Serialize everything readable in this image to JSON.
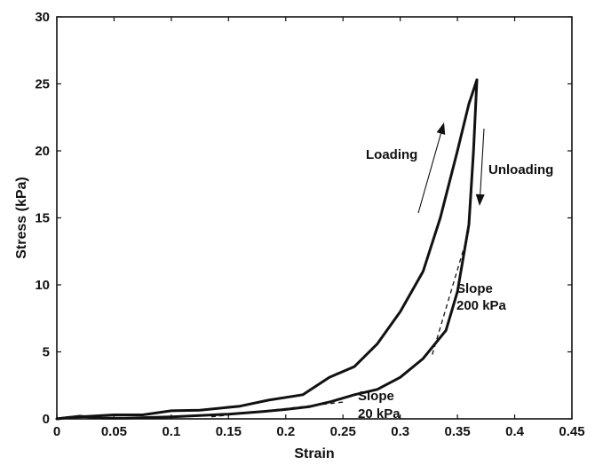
{
  "chart_data": {
    "type": "line",
    "title": "",
    "xlabel": "Strain",
    "ylabel": "Stress (kPa)",
    "xlim": [
      0,
      0.45
    ],
    "ylim": [
      0,
      30
    ],
    "grid": false,
    "x_ticks": [
      "0",
      "0.05",
      "0.1",
      "0.15",
      "0.2",
      "0.25",
      "0.3",
      "0.35",
      "0.4",
      "0.45"
    ],
    "y_ticks": [
      "0",
      "5",
      "10",
      "15",
      "20",
      "25",
      "30"
    ],
    "series": [
      {
        "id": "loading",
        "points": [
          [
            0,
            0
          ],
          [
            0.01,
            0.1
          ],
          [
            0.03,
            0.2
          ],
          [
            0.05,
            0.3
          ],
          [
            0.075,
            0.3
          ],
          [
            0.1,
            0.6
          ],
          [
            0.125,
            0.65
          ],
          [
            0.16,
            0.95
          ],
          [
            0.185,
            1.4
          ],
          [
            0.215,
            1.8
          ],
          [
            0.238,
            3.1
          ],
          [
            0.26,
            3.9
          ],
          [
            0.28,
            5.6
          ],
          [
            0.3,
            8.0
          ],
          [
            0.32,
            11.0
          ],
          [
            0.335,
            15.0
          ],
          [
            0.35,
            20.0
          ],
          [
            0.36,
            23.5
          ],
          [
            0.367,
            25.3
          ]
        ]
      },
      {
        "id": "unloading",
        "points": [
          [
            0.367,
            25.3
          ],
          [
            0.364,
            20.0
          ],
          [
            0.36,
            14.5
          ],
          [
            0.35,
            9.5
          ],
          [
            0.34,
            6.6
          ],
          [
            0.32,
            4.5
          ],
          [
            0.3,
            3.1
          ],
          [
            0.28,
            2.2
          ],
          [
            0.26,
            1.8
          ],
          [
            0.24,
            1.3
          ],
          [
            0.22,
            0.9
          ],
          [
            0.2,
            0.7
          ],
          [
            0.18,
            0.55
          ],
          [
            0.15,
            0.35
          ],
          [
            0.125,
            0.25
          ],
          [
            0.1,
            0.15
          ],
          [
            0.08,
            0.1
          ],
          [
            0.06,
            0.05
          ],
          [
            0.04,
            0.05
          ],
          [
            0.02,
            0.2
          ],
          [
            0,
            0
          ]
        ]
      }
    ],
    "fit_lines": [
      {
        "label": [
          "Slope",
          "20 kPa"
        ],
        "points": [
          [
            0.135,
            0.15
          ],
          [
            0.25,
            1.25
          ]
        ]
      },
      {
        "label": [
          "Slope",
          "200 kPa"
        ],
        "points": [
          [
            0.328,
            4.8
          ],
          [
            0.36,
            14.0
          ]
        ]
      }
    ],
    "annotations": {
      "loading": "Loading",
      "unloading": "Unloading"
    }
  }
}
